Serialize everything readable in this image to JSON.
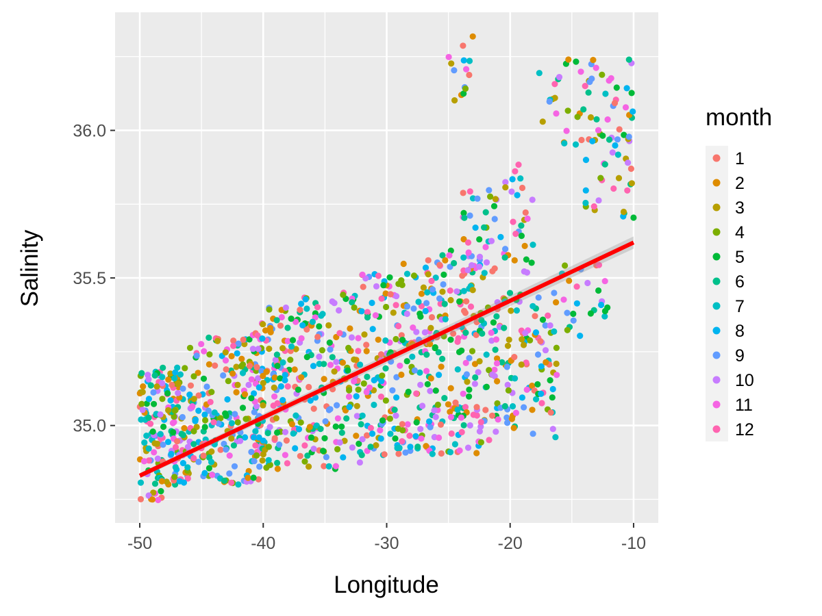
{
  "chart_data": {
    "type": "scatter",
    "title": "",
    "xlabel": "Longitude",
    "ylabel": "Salinity",
    "xlim": [
      -52,
      -8
    ],
    "ylim": [
      34.67,
      36.4
    ],
    "x_ticks": [
      -50,
      -40,
      -30,
      -20,
      -10
    ],
    "x_tick_labels": [
      "-50",
      "-40",
      "-30",
      "-20",
      "-10"
    ],
    "y_ticks": [
      35.0,
      35.5,
      36.0
    ],
    "y_tick_labels": [
      "35.0",
      "35.5",
      "36.0"
    ],
    "grid": true,
    "legend_position": "right",
    "legend": {
      "title": "month",
      "entries": [
        {
          "label": "1",
          "color": "#F8766D"
        },
        {
          "label": "2",
          "color": "#DE8C00"
        },
        {
          "label": "3",
          "color": "#B79F00"
        },
        {
          "label": "4",
          "color": "#7CAE00"
        },
        {
          "label": "5",
          "color": "#00BA38"
        },
        {
          "label": "6",
          "color": "#00C08B"
        },
        {
          "label": "7",
          "color": "#00BFC4"
        },
        {
          "label": "8",
          "color": "#00B4F0"
        },
        {
          "label": "9",
          "color": "#619CFF"
        },
        {
          "label": "10",
          "color": "#C77CFF"
        },
        {
          "label": "11",
          "color": "#F564E3"
        },
        {
          "label": "12",
          "color": "#FF64B0"
        }
      ]
    },
    "trend_line": {
      "type": "linear",
      "color": "#FF0000",
      "x": [
        -50,
        -10
      ],
      "y": [
        34.83,
        35.62
      ]
    },
    "point_clusters": [
      {
        "x_range": [
          -50,
          -46
        ],
        "y_range": [
          34.8,
          35.2
        ],
        "n": 180
      },
      {
        "x_range": [
          -46,
          -40
        ],
        "y_range": [
          34.8,
          35.3
        ],
        "n": 200
      },
      {
        "x_range": [
          -41,
          -37
        ],
        "y_range": [
          34.85,
          35.4
        ],
        "n": 150
      },
      {
        "x_range": [
          -37,
          -32
        ],
        "y_range": [
          34.85,
          35.45
        ],
        "n": 160
      },
      {
        "x_range": [
          -32,
          -27
        ],
        "y_range": [
          34.9,
          35.55
        ],
        "n": 170
      },
      {
        "x_range": [
          -27,
          -22
        ],
        "y_range": [
          34.9,
          35.6
        ],
        "n": 180
      },
      {
        "x_range": [
          -24,
          -21
        ],
        "y_range": [
          35.5,
          35.8
        ],
        "n": 40
      },
      {
        "x_range": [
          -22,
          -16
        ],
        "y_range": [
          34.95,
          35.45
        ],
        "n": 130
      },
      {
        "x_range": [
          -21,
          -18
        ],
        "y_range": [
          35.5,
          35.9
        ],
        "n": 30
      },
      {
        "x_range": [
          -25,
          -23
        ],
        "y_range": [
          36.1,
          36.33
        ],
        "n": 14
      },
      {
        "x_range": [
          -18,
          -10
        ],
        "y_range": [
          35.95,
          36.25
        ],
        "n": 60
      },
      {
        "x_range": [
          -14,
          -10
        ],
        "y_range": [
          35.7,
          36.0
        ],
        "n": 30
      },
      {
        "x_range": [
          -16,
          -12
        ],
        "y_range": [
          35.3,
          35.55
        ],
        "n": 25
      },
      {
        "x_range": [
          -50,
          -48
        ],
        "y_range": [
          34.74,
          34.78
        ],
        "n": 10
      }
    ]
  }
}
